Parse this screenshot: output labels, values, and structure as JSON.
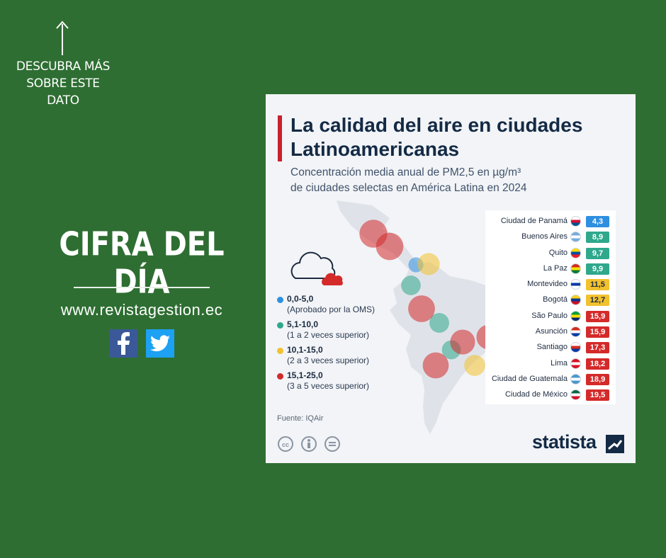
{
  "sidebar": {
    "discover_lines": [
      "DESCUBRA MÁS",
      "SOBRE ESTE",
      "DATO"
    ],
    "headline": "CIFRA DEL DÍA",
    "url": "www.revistagestion.ec",
    "social": [
      {
        "name": "facebook",
        "icon": "facebook-icon",
        "color": "#3b5998"
      },
      {
        "name": "twitter",
        "icon": "twitter-icon",
        "color": "#1da1f2"
      }
    ]
  },
  "infographic": {
    "title": "La calidad del aire en ciudades Latinoamericanas",
    "subtitle_line1": "Concentración media anual de PM2,5 en µg/m³",
    "subtitle_line2": "de ciudades selectas en América Latina en 2024",
    "source": "Fuente: IQAir",
    "brand": "statista"
  },
  "legend": [
    {
      "range": "0,0-5,0",
      "desc": "(Aprobado por la OMS)",
      "color": "#2f8fe0"
    },
    {
      "range": "5,1-10,0",
      "desc": "(1 a 2 veces superior)",
      "color": "#2fa88c"
    },
    {
      "range": "10,1-15,0",
      "desc": "(2 a 3 veces superior)",
      "color": "#f2c12e"
    },
    {
      "range": "15,1-25,0",
      "desc": "(3 a 5 veces superior)",
      "color": "#d42a2a"
    }
  ],
  "chart_data": {
    "type": "table",
    "title": "La calidad del aire en ciudades Latinoamericanas",
    "subtitle": "Concentración media anual de PM2,5 en µg/m³ de ciudades selectas en América Latina en 2024",
    "rows": [
      {
        "city": "Ciudad de Panamá",
        "value": "4,3",
        "category": 0
      },
      {
        "city": "Buenos Aires",
        "value": "8,9",
        "category": 1
      },
      {
        "city": "Quito",
        "value": "9,7",
        "category": 1
      },
      {
        "city": "La Paz",
        "value": "9,9",
        "category": 1
      },
      {
        "city": "Montevideo",
        "value": "11,5",
        "category": 2
      },
      {
        "city": "Bogotá",
        "value": "12,7",
        "category": 2
      },
      {
        "city": "São Paulo",
        "value": "15,9",
        "category": 3
      },
      {
        "city": "Asunción",
        "value": "15,9",
        "category": 3
      },
      {
        "city": "Santiago",
        "value": "17,3",
        "category": 3
      },
      {
        "city": "Lima",
        "value": "18,2",
        "category": 3
      },
      {
        "city": "Ciudad de Guatemala",
        "value": "18,9",
        "category": 3
      },
      {
        "city": "Ciudad de México",
        "value": "19,5",
        "category": 3
      }
    ],
    "category_colors": [
      "#2f8fe0",
      "#2fa88c",
      "#f2c12e",
      "#d42a2a"
    ],
    "category_text_colors": [
      "#ffffff",
      "#ffffff",
      "#1d2b40",
      "#ffffff"
    ],
    "flags": [
      [
        "#ffffff",
        "#d21034",
        "#005293"
      ],
      [
        "#74acdf",
        "#ffffff",
        "#74acdf"
      ],
      [
        "#ffdd00",
        "#034ea2",
        "#ed1c24"
      ],
      [
        "#d52b1e",
        "#f9e300",
        "#007934"
      ],
      [
        "#ffffff",
        "#0038a8",
        "#ffffff"
      ],
      [
        "#fcd116",
        "#003893",
        "#ce1126"
      ],
      [
        "#009c3b",
        "#ffdf00",
        "#002776"
      ],
      [
        "#d52b1e",
        "#ffffff",
        "#0038a8"
      ],
      [
        "#ffffff",
        "#d52b1e",
        "#0039a6"
      ],
      [
        "#d91023",
        "#ffffff",
        "#d91023"
      ],
      [
        "#4997d0",
        "#ffffff",
        "#4997d0"
      ],
      [
        "#006847",
        "#ffffff",
        "#ce1126"
      ]
    ]
  }
}
